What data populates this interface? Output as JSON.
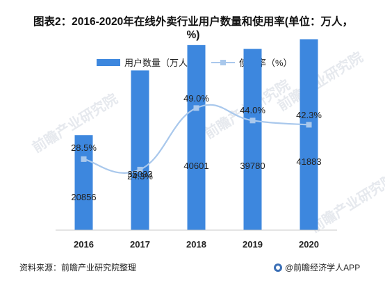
{
  "title": "图表2：2016-2020年在线外卖行业用户数量和使用率(单位：万人，%)",
  "source": "资料来源：前瞻产业研究院整理",
  "credit": "@前瞻经济学人APP",
  "watermark": "前瞻产业研究院",
  "colors": {
    "bar": "#3d87de",
    "line": "#a9c8ec",
    "axis": "#c8c8c8"
  },
  "chart_data": {
    "type": "bar",
    "categories": [
      "2016",
      "2017",
      "2018",
      "2019",
      "2020"
    ],
    "series": [
      {
        "name": "用户数量（万人）",
        "type": "bar",
        "axis": "left",
        "values": [
          20856,
          35033,
          40601,
          39780,
          41883
        ],
        "data_labels": [
          "20856",
          "35033",
          "40601",
          "39780",
          "41883"
        ]
      },
      {
        "name": "使用率（%）",
        "type": "line",
        "axis": "right",
        "smooth": true,
        "values": [
          28.5,
          24.3,
          49.0,
          44.0,
          42.3
        ],
        "data_labels": [
          "28.5%",
          "24.3%",
          "49.0%",
          "44.0%",
          "42.3%"
        ]
      }
    ],
    "ylim_left": [
      0,
      45000
    ],
    "ylim_right": [
      0,
      60
    ],
    "grid": false,
    "legend": "top-center"
  }
}
